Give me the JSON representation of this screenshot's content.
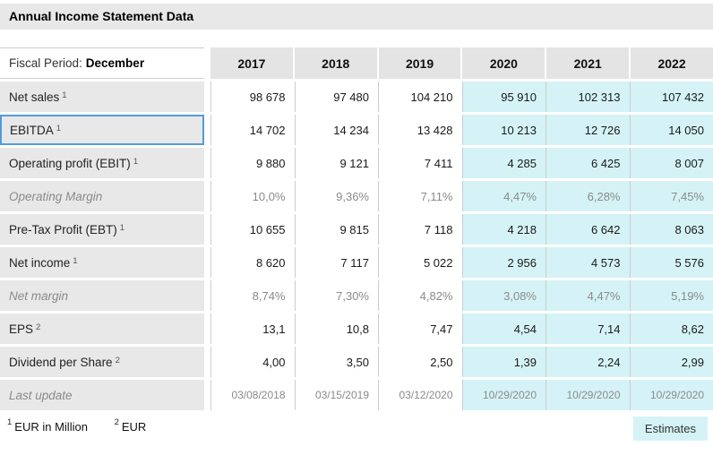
{
  "title": "Annual Income Statement Data",
  "table": {
    "header": {
      "label_prefix": "Fiscal Period:",
      "label_value": "December",
      "years": [
        "2017",
        "2018",
        "2019",
        "2020",
        "2021",
        "2022"
      ]
    },
    "estimate_start": 3,
    "rows": [
      {
        "label": "Net sales",
        "sup": "1",
        "style": "normal",
        "highlighted": false,
        "values": [
          "98 678",
          "97 480",
          "104 210",
          "95 910",
          "102 313",
          "107 432"
        ]
      },
      {
        "label": "EBITDA",
        "sup": "1",
        "style": "normal",
        "highlighted": true,
        "values": [
          "14 702",
          "14 234",
          "13 428",
          "10 213",
          "12 726",
          "14 050"
        ]
      },
      {
        "label": "Operating profit (EBIT)",
        "sup": "1",
        "style": "normal",
        "highlighted": false,
        "values": [
          "9 880",
          "9 121",
          "7 411",
          "4 285",
          "6 425",
          "8 007"
        ]
      },
      {
        "label": "Operating Margin",
        "sup": "",
        "style": "muted",
        "highlighted": false,
        "values": [
          "10,0%",
          "9,36%",
          "7,11%",
          "4,47%",
          "6,28%",
          "7,45%"
        ]
      },
      {
        "label": "Pre-Tax Profit (EBT)",
        "sup": "1",
        "style": "normal",
        "highlighted": false,
        "values": [
          "10 655",
          "9 815",
          "7 118",
          "4 218",
          "6 642",
          "8 063"
        ]
      },
      {
        "label": "Net income",
        "sup": "1",
        "style": "normal",
        "highlighted": false,
        "values": [
          "8 620",
          "7 117",
          "5 022",
          "2 956",
          "4 573",
          "5 576"
        ]
      },
      {
        "label": "Net margin",
        "sup": "",
        "style": "muted",
        "highlighted": false,
        "values": [
          "8,74%",
          "7,30%",
          "4,82%",
          "3,08%",
          "4,47%",
          "5,19%"
        ]
      },
      {
        "label": "EPS",
        "sup": "2",
        "style": "normal",
        "highlighted": false,
        "values": [
          "13,1",
          "10,8",
          "7,47",
          "4,54",
          "7,14",
          "8,62"
        ]
      },
      {
        "label": "Dividend per Share",
        "sup": "2",
        "style": "normal",
        "highlighted": false,
        "values": [
          "4,00",
          "3,50",
          "2,50",
          "1,39",
          "2,24",
          "2,99"
        ]
      },
      {
        "label": "Last update",
        "sup": "",
        "style": "muted-small",
        "highlighted": false,
        "values": [
          "03/08/2018",
          "03/15/2019",
          "03/12/2020",
          "10/29/2020",
          "10/29/2020",
          "10/29/2020"
        ]
      }
    ]
  },
  "footnotes": [
    {
      "sup": "1",
      "text": "EUR in Million"
    },
    {
      "sup": "2",
      "text": "EUR"
    }
  ],
  "estimates_label": "Estimates",
  "colors": {
    "estimate_bg": "#d5f3f7",
    "highlight_border": "#4f9cdb",
    "label_bg": "#e8e8e8",
    "header_bg": "#e4e4e4",
    "grid_line": "#cccccc",
    "muted_text": "#8a8a8a"
  }
}
